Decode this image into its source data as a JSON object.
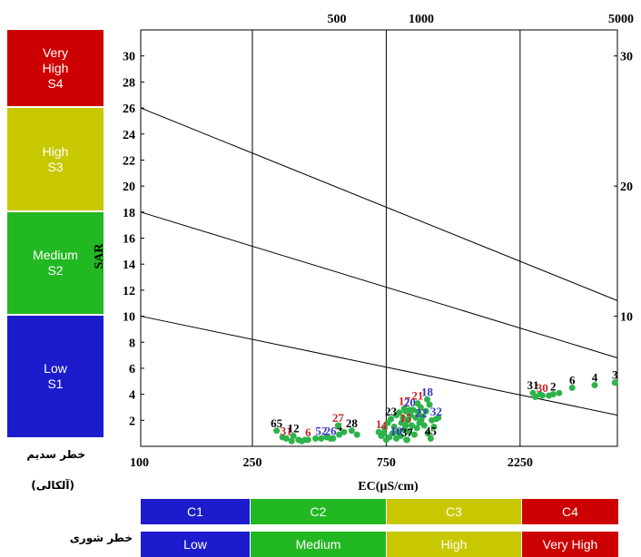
{
  "sodium_hazard": {
    "label": "خطر سدیم",
    "sublabel": "(آلکالی)",
    "classes": [
      {
        "line1": "Very",
        "line2": "High",
        "line3": "S4",
        "color": "#cc0000"
      },
      {
        "line1": "High",
        "line2": "S3",
        "line3": "",
        "color": "#c8c800"
      },
      {
        "line1": "Medium",
        "line2": "S2",
        "line3": "",
        "color": "#22b822"
      },
      {
        "line1": "Low",
        "line2": "S1",
        "line3": "",
        "color": "#1c1ccc"
      }
    ]
  },
  "salinity_hazard": {
    "label": "خطر شوری",
    "classes": [
      {
        "code": "C1",
        "name": "Low",
        "color": "#1c1ccc"
      },
      {
        "code": "C2",
        "name": "Medium",
        "color": "#22b822"
      },
      {
        "code": "C3",
        "name": "High",
        "color": "#c8c800"
      },
      {
        "code": "C4",
        "name": "Very High",
        "color": "#cc0000"
      }
    ]
  },
  "chart_data": {
    "type": "scatter",
    "title": "",
    "xlabel": "EC(µS/cm)",
    "ylabel": "SAR",
    "x_axis_scale": "log",
    "xlim": [
      100,
      5000
    ],
    "ylim": [
      0,
      32
    ],
    "x_ticks_bottom": [
      "100",
      "250",
      "750",
      "2250"
    ],
    "x_ticks_top": [
      "500",
      "1000",
      "5000"
    ],
    "y_ticks_left": [
      "2",
      "4",
      "6",
      "8",
      "10",
      "12",
      "14",
      "16",
      "18",
      "20",
      "22",
      "24",
      "26",
      "28",
      "30"
    ],
    "y_ticks_right": [
      "10",
      "20",
      "30"
    ],
    "boundaries": [
      {
        "from": [
          100,
          26
        ],
        "to": [
          5000,
          11.2
        ]
      },
      {
        "from": [
          100,
          18
        ],
        "to": [
          5000,
          6.8
        ]
      },
      {
        "from": [
          100,
          10
        ],
        "to": [
          5000,
          2.4
        ]
      }
    ],
    "salinity_dividers_ec": [
      250,
      750,
      2250
    ],
    "point_color": "#2db34a",
    "points": [
      {
        "id": "65",
        "ec": 305,
        "sar": 1.2,
        "color": "#000000"
      },
      {
        "id": "31",
        "ec": 330,
        "sar": 0.6,
        "color": "#cc2222"
      },
      {
        "id": "12",
        "ec": 350,
        "sar": 0.8,
        "color": "#000000"
      },
      {
        "id": "6",
        "ec": 395,
        "sar": 0.5,
        "color": "#cc2222"
      },
      {
        "id": "52",
        "ec": 440,
        "sar": 0.6,
        "color": "#3333cc"
      },
      {
        "id": "26",
        "ec": 475,
        "sar": 0.6,
        "color": "#3333cc"
      },
      {
        "id": "4",
        "ec": 510,
        "sar": 0.9,
        "color": "#000000"
      },
      {
        "id": "27",
        "ec": 505,
        "sar": 1.6,
        "color": "#cc2222"
      },
      {
        "id": "28",
        "ec": 565,
        "sar": 1.2,
        "color": "#000000"
      },
      {
        "id": "1",
        "ec": 705,
        "sar": 1.1,
        "color": "#cc2222"
      },
      {
        "id": "4",
        "ec": 735,
        "sar": 1.0,
        "color": "#cc2222"
      },
      {
        "id": "23",
        "ec": 780,
        "sar": 2.1,
        "color": "#000000"
      },
      {
        "id": "10",
        "ec": 815,
        "sar": 0.6,
        "color": "#3333cc"
      },
      {
        "id": "17",
        "ec": 870,
        "sar": 2.9,
        "color": "#cc2222"
      },
      {
        "id": "20",
        "ec": 910,
        "sar": 2.8,
        "color": "#3333cc"
      },
      {
        "id": "15",
        "ec": 880,
        "sar": 1.6,
        "color": "#cc2222"
      },
      {
        "id": "21",
        "ec": 970,
        "sar": 3.3,
        "color": "#cc2222"
      },
      {
        "id": "18",
        "ec": 1050,
        "sar": 3.6,
        "color": "#3333cc"
      },
      {
        "id": "22",
        "ec": 1000,
        "sar": 2.0,
        "color": "#3333cc"
      },
      {
        "id": "37",
        "ec": 890,
        "sar": 0.5,
        "color": "#000000"
      },
      {
        "id": "32",
        "ec": 1130,
        "sar": 2.1,
        "color": "#3333cc"
      },
      {
        "id": "45",
        "ec": 1080,
        "sar": 0.6,
        "color": "#000000"
      },
      {
        "id": "31",
        "ec": 2500,
        "sar": 4.1,
        "color": "#000000"
      },
      {
        "id": "30",
        "ec": 2700,
        "sar": 3.9,
        "color": "#cc2222"
      },
      {
        "id": "2",
        "ec": 2950,
        "sar": 4.0,
        "color": "#000000"
      },
      {
        "id": "6",
        "ec": 3450,
        "sar": 4.5,
        "color": "#000000"
      },
      {
        "id": "4",
        "ec": 4150,
        "sar": 4.7,
        "color": "#000000"
      },
      {
        "id": "3",
        "ec": 4900,
        "sar": 4.9,
        "color": "#000000"
      }
    ],
    "unlabeled_points": [
      [
        320,
        0.7
      ],
      [
        345,
        0.4
      ],
      [
        365,
        0.5
      ],
      [
        375,
        0.4
      ],
      [
        385,
        0.5
      ],
      [
        420,
        0.6
      ],
      [
        460,
        0.7
      ],
      [
        485,
        0.6
      ],
      [
        530,
        1.1
      ],
      [
        590,
        0.9
      ],
      [
        720,
        0.8
      ],
      [
        740,
        1.4
      ],
      [
        750,
        0.5
      ],
      [
        760,
        1.8
      ],
      [
        770,
        0.7
      ],
      [
        790,
        1.0
      ],
      [
        800,
        1.5
      ],
      [
        815,
        2.4
      ],
      [
        825,
        1.1
      ],
      [
        835,
        2.6
      ],
      [
        845,
        0.8
      ],
      [
        850,
        1.8
      ],
      [
        860,
        2.2
      ],
      [
        870,
        1.3
      ],
      [
        880,
        2.7
      ],
      [
        885,
        0.5
      ],
      [
        895,
        2.0
      ],
      [
        905,
        1.1
      ],
      [
        915,
        2.4
      ],
      [
        925,
        1.6
      ],
      [
        935,
        2.8
      ],
      [
        945,
        0.9
      ],
      [
        955,
        2.2
      ],
      [
        965,
        1.4
      ],
      [
        975,
        2.6
      ],
      [
        985,
        1.8
      ],
      [
        995,
        3.0
      ],
      [
        1010,
        2.3
      ],
      [
        1025,
        1.6
      ],
      [
        1040,
        2.7
      ],
      [
        1055,
        1.0
      ],
      [
        1070,
        3.2
      ],
      [
        1090,
        2.0
      ],
      [
        1110,
        1.5
      ],
      [
        1150,
        2.2
      ],
      [
        2550,
        3.8
      ],
      [
        2650,
        4.0
      ],
      [
        2850,
        3.9
      ],
      [
        3100,
        4.1
      ]
    ]
  }
}
